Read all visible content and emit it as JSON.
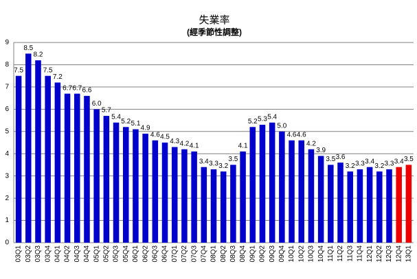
{
  "chart_data": {
    "type": "bar",
    "title": "失業率",
    "subtitle": "(經季節性調整)",
    "categories": [
      "03Q1",
      "03Q2",
      "03Q3",
      "03Q4",
      "04Q1",
      "04Q2",
      "04Q3",
      "04Q4",
      "05Q1",
      "05Q2",
      "05Q3",
      "05Q4",
      "06Q1",
      "06Q2",
      "06Q3",
      "06Q4",
      "07Q1",
      "07Q2",
      "07Q3",
      "07Q4",
      "08Q1",
      "08Q2",
      "08Q3",
      "08Q4",
      "09Q1",
      "09Q2",
      "09Q3",
      "09Q4",
      "10Q1",
      "10Q2",
      "10Q3",
      "10Q4",
      "11Q1",
      "11Q2",
      "11Q3",
      "11Q4",
      "12Q1",
      "12Q2",
      "12Q3",
      "12Q4",
      "13Q1"
    ],
    "values": [
      7.5,
      8.5,
      8.2,
      7.5,
      7.2,
      6.7,
      6.7,
      6.6,
      6.0,
      5.7,
      5.4,
      5.2,
      5.1,
      4.9,
      4.6,
      4.5,
      4.3,
      4.2,
      4.1,
      3.4,
      3.3,
      3.2,
      3.5,
      4.1,
      5.2,
      5.3,
      5.4,
      5.0,
      4.6,
      4.6,
      4.2,
      3.9,
      3.5,
      3.6,
      3.2,
      3.3,
      3.4,
      3.2,
      3.3,
      3.4,
      3.5
    ],
    "value_labels": [
      "7.5",
      "8.5",
      "8.2",
      "7.5",
      "7.2",
      "6.7",
      "6.7",
      "6.6",
      "6.0",
      "5.7",
      "5.4",
      "5.2",
      "5.1",
      "4.9",
      "4.6",
      "4.5",
      "4.3",
      "4.2",
      "4.1",
      "3.4",
      "3.3",
      "3.2",
      "3.5",
      "4.1",
      "5.2",
      "5.3",
      "5.4",
      "5.0",
      "4.6",
      "4.6",
      "4.2",
      "3.9",
      "3.5",
      "3.6",
      "3.2",
      "3.3",
      "3.4",
      "3.2",
      "3.3",
      "3.4",
      "3.5"
    ],
    "colors": [
      "#0000cc",
      "#0000cc",
      "#0000cc",
      "#0000cc",
      "#0000cc",
      "#0000cc",
      "#0000cc",
      "#0000cc",
      "#0000cc",
      "#0000cc",
      "#0000cc",
      "#0000cc",
      "#0000cc",
      "#0000cc",
      "#0000cc",
      "#0000cc",
      "#0000cc",
      "#0000cc",
      "#0000cc",
      "#0000cc",
      "#0000cc",
      "#0000cc",
      "#0000cc",
      "#0000cc",
      "#0000cc",
      "#0000cc",
      "#0000cc",
      "#0000cc",
      "#0000cc",
      "#0000cc",
      "#0000cc",
      "#0000cc",
      "#0000cc",
      "#0000cc",
      "#0000cc",
      "#0000cc",
      "#0000cc",
      "#0000cc",
      "#0000cc",
      "#ee0000",
      "#ee0000"
    ],
    "ylim": [
      0,
      9
    ],
    "yticks": [
      0,
      1,
      2,
      3,
      4,
      5,
      6,
      7,
      8,
      9
    ],
    "grid": true
  }
}
